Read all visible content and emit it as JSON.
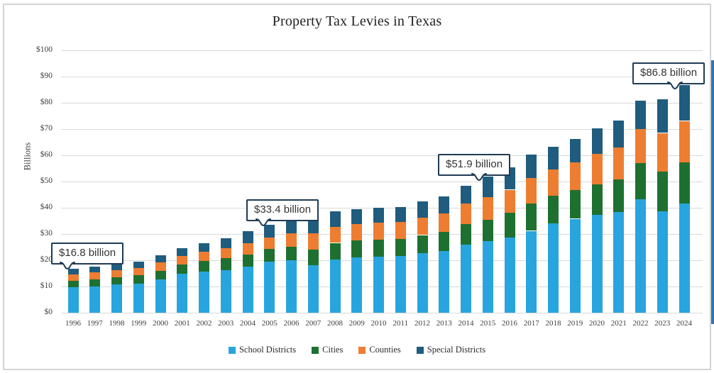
{
  "window": {
    "border_color": "#d4d4d4",
    "right_edge_color": "#2e75b6",
    "background": "#ffffff"
  },
  "chart_data": {
    "type": "bar",
    "stacked": true,
    "title": "Property Tax Levies in Texas",
    "xlabel": "",
    "ylabel": "Billions",
    "ylim": [
      0,
      100
    ],
    "ytick_step": 10,
    "ytick_prefix": "$",
    "grid": true,
    "gridline_color": "#d9d9d9",
    "legend_position": "bottom",
    "categories": [
      "1996",
      "1997",
      "1998",
      "1999",
      "2000",
      "2001",
      "2002",
      "2003",
      "2004",
      "2005",
      "2006",
      "2007",
      "2008",
      "2009",
      "2010",
      "2011",
      "2012",
      "2013",
      "2014",
      "2015",
      "2016",
      "2017",
      "2018",
      "2019",
      "2020",
      "2021",
      "2022",
      "2023",
      "2024"
    ],
    "series": [
      {
        "name": "School Districts",
        "color": "#28A5DE",
        "values": [
          9.7,
          10.1,
          10.7,
          11.2,
          12.6,
          14.9,
          15.7,
          16.3,
          17.6,
          19.5,
          20.0,
          18.1,
          20.3,
          21.0,
          21.4,
          21.5,
          22.7,
          23.6,
          26.0,
          27.2,
          28.7,
          31.2,
          34.2,
          35.8,
          37.3,
          38.4,
          43.2,
          38.6,
          41.6
        ]
      },
      {
        "name": "Cities",
        "color": "#1E7030",
        "values": [
          2.5,
          2.6,
          2.8,
          3.1,
          3.4,
          3.5,
          4.0,
          4.5,
          4.6,
          4.9,
          5.2,
          5.9,
          6.3,
          6.5,
          6.5,
          6.6,
          6.9,
          7.2,
          7.8,
          8.3,
          9.5,
          10.3,
          10.4,
          11.0,
          11.7,
          12.3,
          13.8,
          15.3,
          15.8
        ]
      },
      {
        "name": "Counties",
        "color": "#ED7D31",
        "values": [
          2.5,
          2.6,
          2.7,
          2.8,
          3.1,
          3.2,
          3.6,
          3.9,
          4.3,
          4.2,
          5.2,
          6.4,
          6.2,
          6.4,
          6.4,
          6.4,
          6.7,
          7.1,
          7.7,
          8.6,
          8.7,
          9.8,
          9.9,
          10.6,
          11.6,
          12.2,
          12.9,
          14.6,
          15.7
        ]
      },
      {
        "name": "Special Districts",
        "color": "#1F5C7E",
        "values": [
          2.1,
          2.2,
          2.4,
          2.4,
          2.9,
          3.0,
          3.3,
          3.8,
          4.7,
          4.8,
          5.0,
          5.5,
          5.8,
          5.6,
          5.8,
          5.7,
          6.2,
          6.5,
          6.9,
          7.8,
          8.6,
          8.9,
          8.7,
          8.9,
          9.8,
          10.4,
          11.0,
          12.9,
          13.7
        ]
      }
    ],
    "annotations": [
      {
        "text": "$16.8 billion",
        "year": "1996"
      },
      {
        "text": "$33.4 billion",
        "year": "2005"
      },
      {
        "text": "$51.9 billion",
        "year": "2015"
      },
      {
        "text": "$86.8 billion",
        "year": "2024"
      }
    ],
    "annotation_border_color": "#1f3b55"
  }
}
